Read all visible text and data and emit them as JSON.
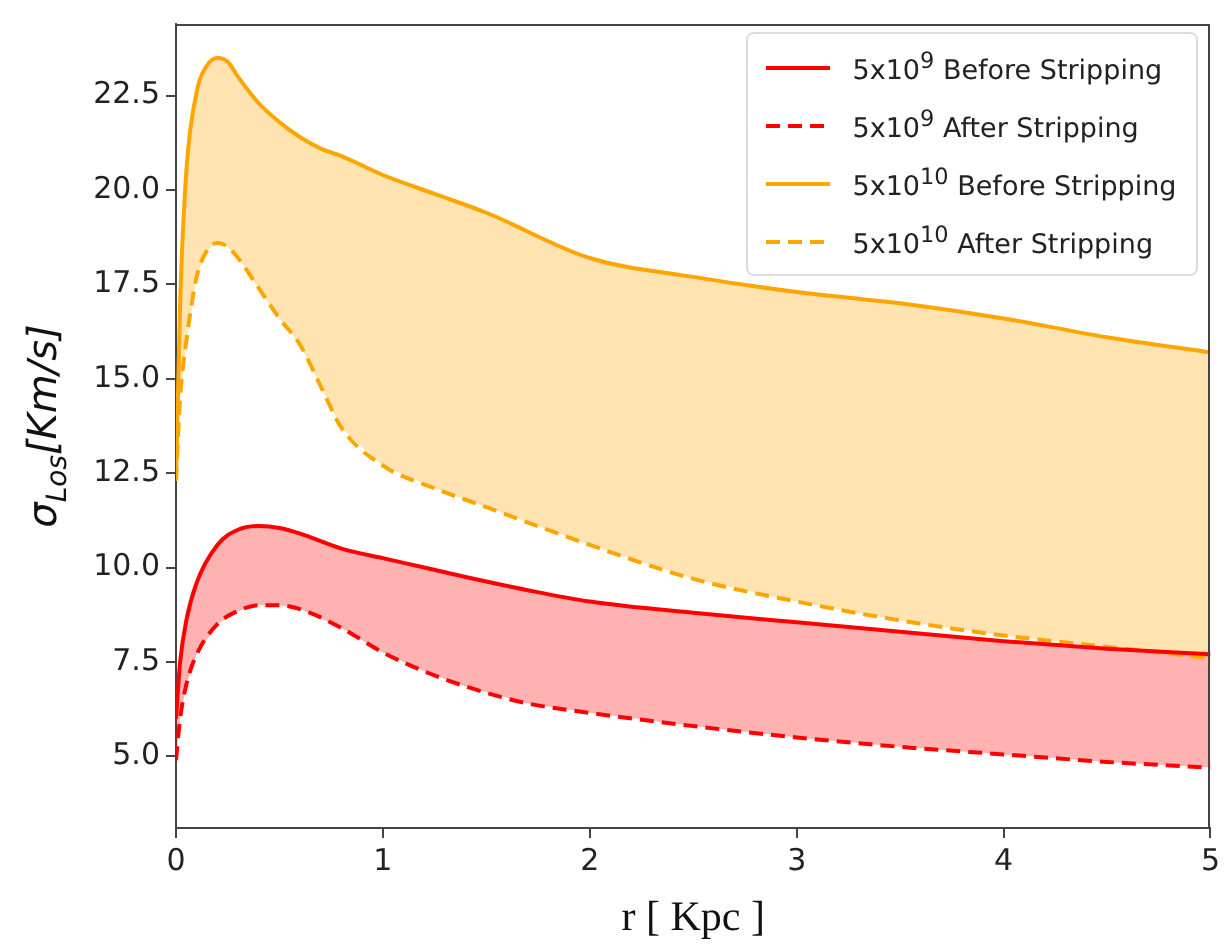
{
  "chart_data": {
    "type": "line",
    "xlabel": "r [ Kpc ]",
    "ylabel": "σ$_{Los}$[Km/s]",
    "xlim": [
      0,
      5
    ],
    "xticks": [
      0,
      1,
      2,
      3,
      4,
      5
    ],
    "ylim": [
      3.1,
      24.4
    ],
    "yticks": [
      {
        "value": 5,
        "label": "5.0"
      },
      {
        "value": 7.5,
        "label": "7.5"
      },
      {
        "value": 10,
        "label": "10.0"
      },
      {
        "value": 12.5,
        "label": "12.5"
      },
      {
        "value": 15,
        "label": "15.0"
      },
      {
        "value": 17.5,
        "label": "17.5"
      },
      {
        "value": 20,
        "label": "20.0"
      },
      {
        "value": 22.5,
        "label": "22.5"
      }
    ],
    "grid": false,
    "legend": "top right",
    "marker": "none",
    "series": [
      {
        "name": "5x10$^{9}$ Before Stripping",
        "color": "#ff0000",
        "line_style": "solid",
        "x": [
          0,
          0.02,
          0.05,
          0.1,
          0.2,
          0.3,
          0.4,
          0.5,
          0.6,
          0.8,
          1,
          1.2,
          1.4,
          1.7,
          2,
          2.5,
          3,
          3.5,
          4,
          4.5,
          5
        ],
        "values": [
          6.0,
          7.5,
          8.6,
          9.6,
          10.6,
          11.0,
          11.1,
          11.05,
          10.9,
          10.5,
          10.25,
          10.0,
          9.75,
          9.4,
          9.1,
          8.8,
          8.55,
          8.3,
          8.05,
          7.85,
          7.7
        ],
        "lower": [
          4.9,
          6.0,
          6.9,
          7.7,
          8.5,
          8.85,
          9.0,
          9.0,
          8.9,
          8.4,
          7.75,
          7.25,
          6.85,
          6.4,
          6.15,
          5.8,
          5.5,
          5.25,
          5.05,
          4.85,
          4.7
        ],
        "upper": [
          6.0,
          7.5,
          8.6,
          9.6,
          10.6,
          11.0,
          11.1,
          11.05,
          10.9,
          10.5,
          10.25,
          10.0,
          9.75,
          9.4,
          9.1,
          8.8,
          8.55,
          8.3,
          8.05,
          7.85,
          7.7
        ]
      },
      {
        "name": "5x10$^{9}$ After Stripping",
        "color": "#ff0000",
        "line_style": "dashed",
        "x": [
          0,
          0.02,
          0.05,
          0.1,
          0.2,
          0.3,
          0.4,
          0.5,
          0.6,
          0.8,
          1,
          1.2,
          1.4,
          1.7,
          2,
          2.5,
          3,
          3.5,
          4,
          4.5,
          5
        ],
        "values": [
          4.9,
          6.0,
          6.9,
          7.7,
          8.5,
          8.85,
          9.0,
          9.0,
          8.9,
          8.4,
          7.75,
          7.25,
          6.85,
          6.4,
          6.15,
          5.8,
          5.5,
          5.25,
          5.05,
          4.85,
          4.7
        ]
      },
      {
        "name": "5x10$^{10}$ Before Stripping",
        "color": "#ffa500",
        "line_style": "solid",
        "x": [
          0,
          0.02,
          0.05,
          0.1,
          0.15,
          0.2,
          0.25,
          0.3,
          0.4,
          0.5,
          0.6,
          0.7,
          0.8,
          1,
          1.25,
          1.5,
          2,
          2.5,
          3,
          3.5,
          4,
          4.5,
          5
        ],
        "values": [
          12.3,
          17.0,
          20.5,
          22.6,
          23.3,
          23.5,
          23.4,
          23.0,
          22.3,
          21.8,
          21.4,
          21.1,
          20.9,
          20.4,
          19.9,
          19.4,
          18.2,
          17.7,
          17.3,
          17.0,
          16.6,
          16.1,
          15.7
        ],
        "lower": [
          12.3,
          14.5,
          16.0,
          17.7,
          18.4,
          18.6,
          18.5,
          18.2,
          17.4,
          16.6,
          15.9,
          14.8,
          13.7,
          12.7,
          12.1,
          11.6,
          10.6,
          9.7,
          9.1,
          8.6,
          8.2,
          7.9,
          7.6
        ],
        "upper": [
          12.3,
          17.0,
          20.5,
          22.6,
          23.3,
          23.5,
          23.4,
          23.0,
          22.3,
          21.8,
          21.4,
          21.1,
          20.9,
          20.4,
          19.9,
          19.4,
          18.2,
          17.7,
          17.3,
          17.0,
          16.6,
          16.1,
          15.7
        ]
      },
      {
        "name": "5x10$^{10}$ After Stripping",
        "color": "#ffa500",
        "line_style": "dashed",
        "x": [
          0,
          0.02,
          0.05,
          0.1,
          0.15,
          0.2,
          0.25,
          0.3,
          0.4,
          0.5,
          0.6,
          0.7,
          0.8,
          1,
          1.25,
          1.5,
          2,
          2.5,
          3,
          3.5,
          4,
          4.5,
          5
        ],
        "values": [
          12.3,
          14.5,
          16.0,
          17.7,
          18.4,
          18.6,
          18.5,
          18.2,
          17.4,
          16.6,
          15.9,
          14.8,
          13.7,
          12.7,
          12.1,
          11.6,
          10.6,
          9.7,
          9.1,
          8.6,
          8.2,
          7.9,
          7.6
        ]
      }
    ]
  }
}
